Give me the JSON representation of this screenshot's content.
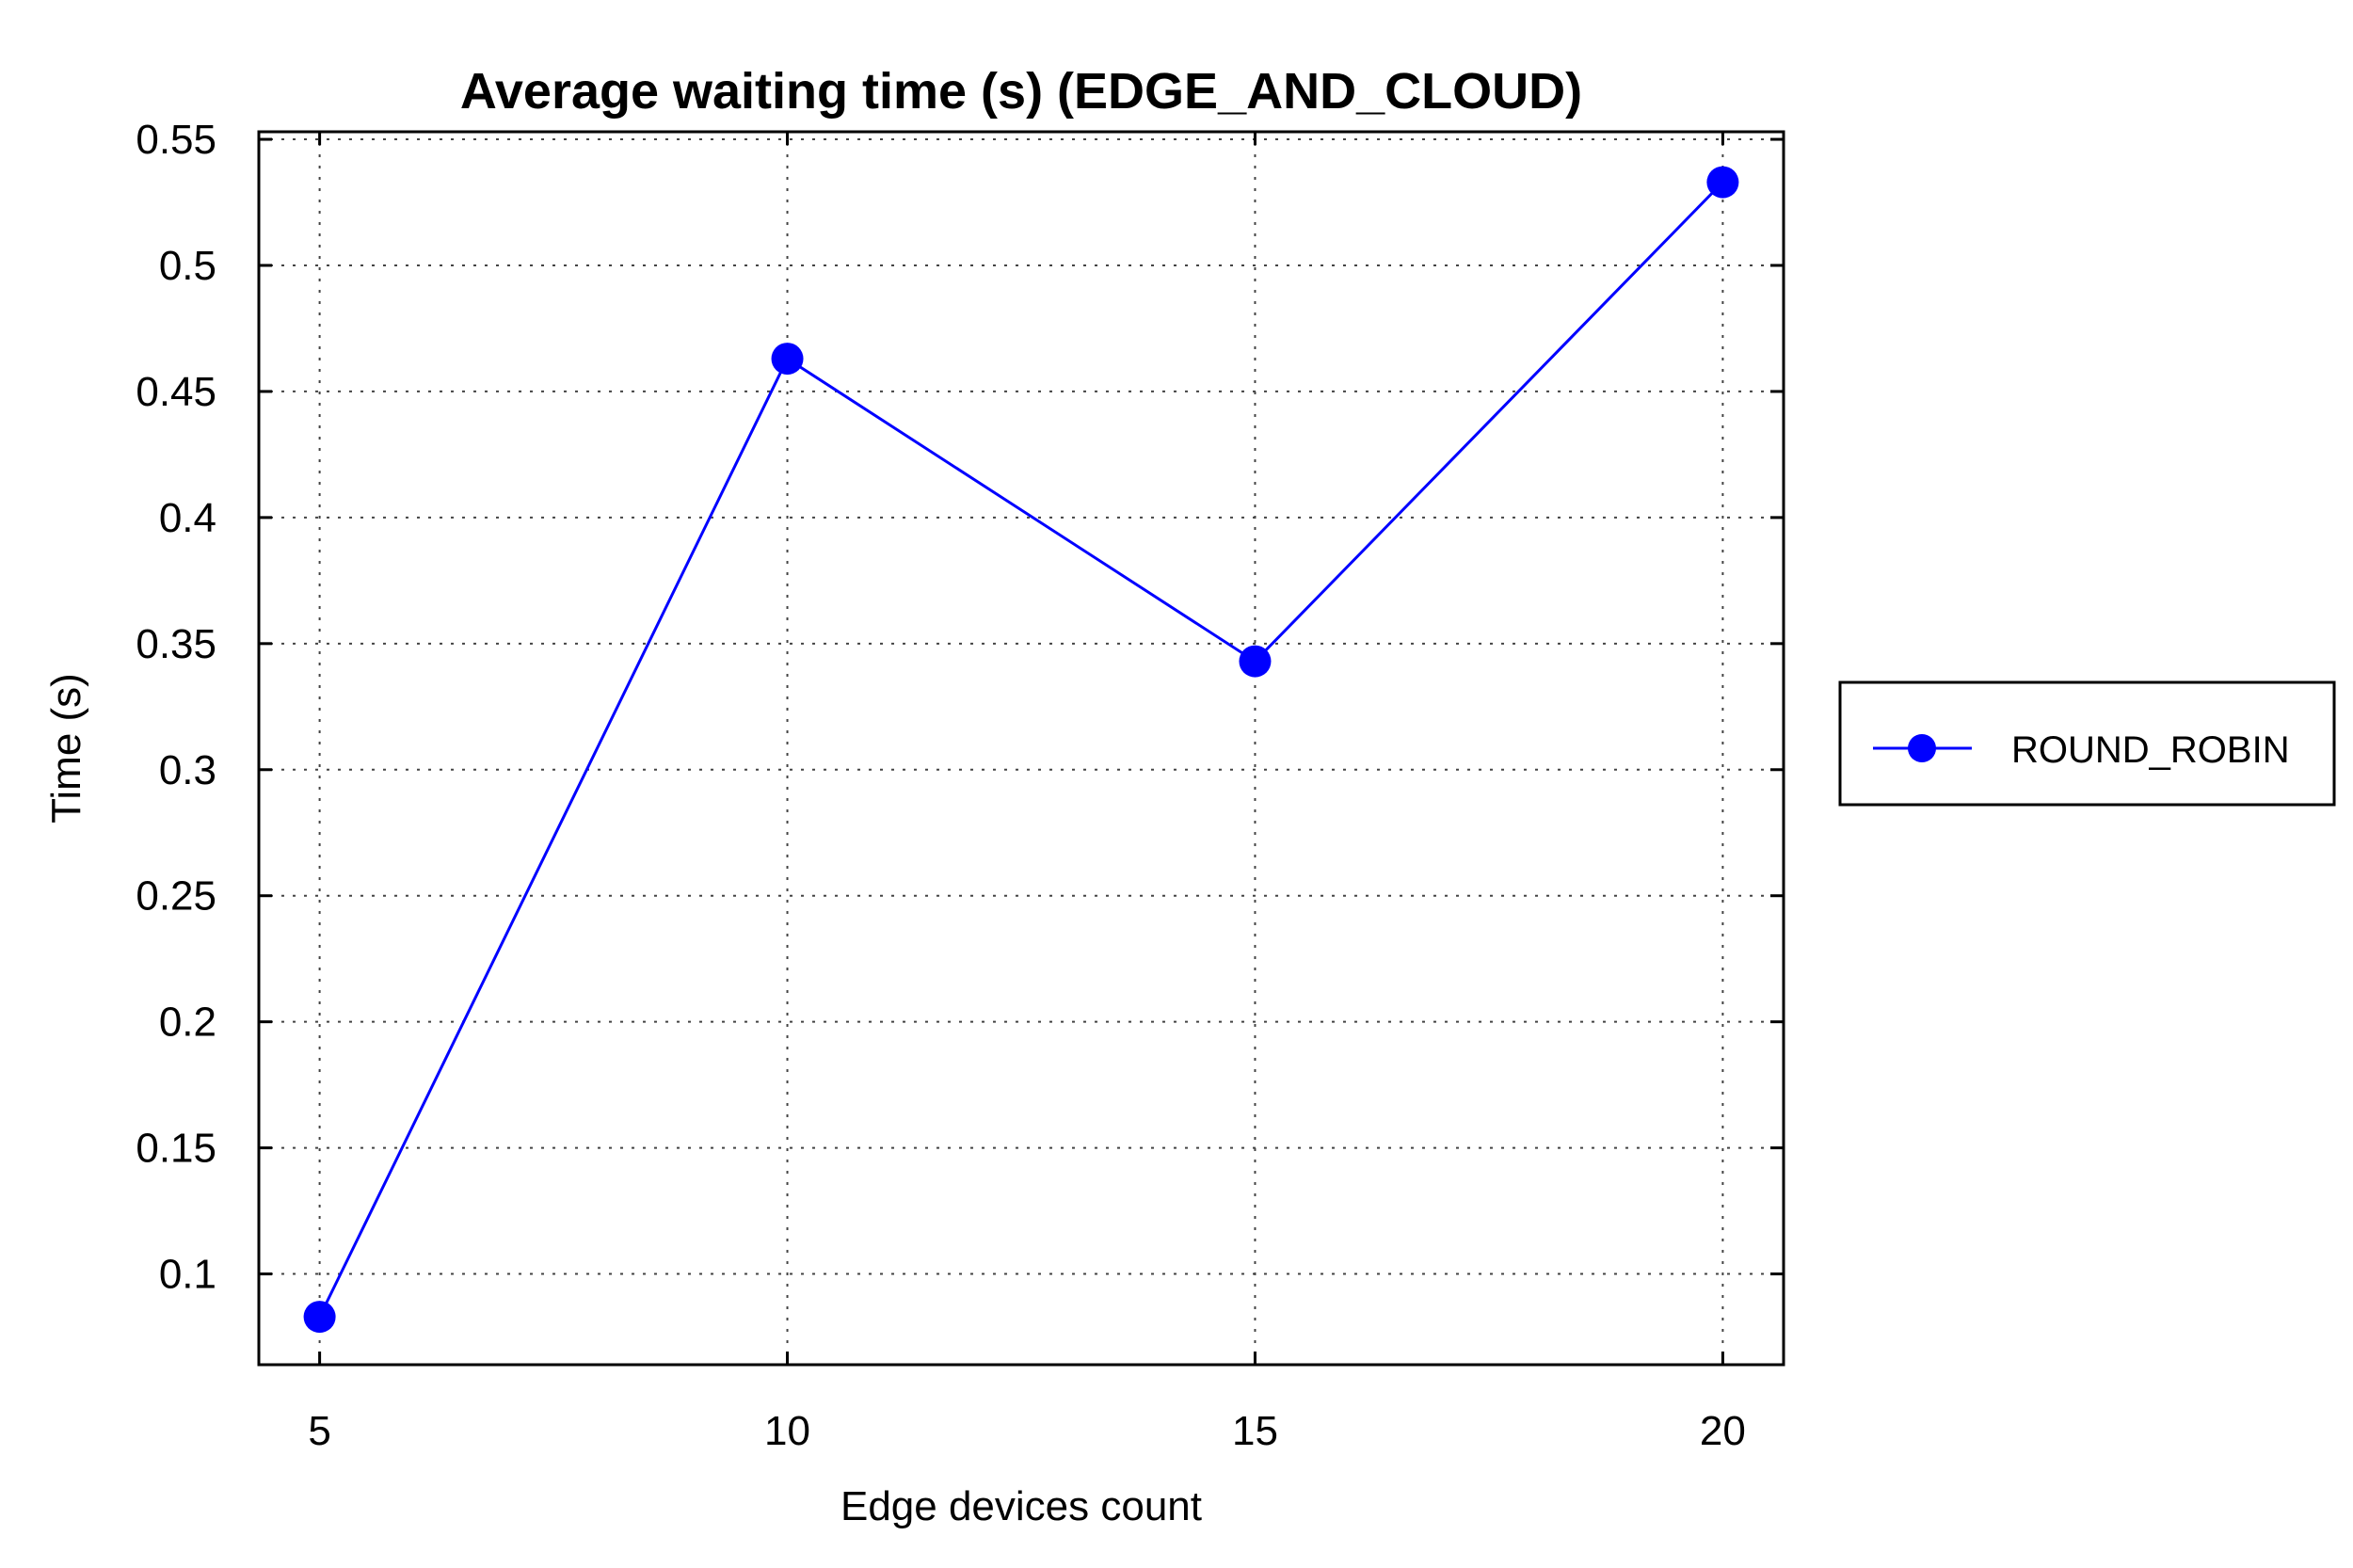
{
  "chart_data": {
    "type": "line",
    "title": "Average waiting time (s) (EDGE_AND_CLOUD)",
    "xlabel": "Edge devices count",
    "ylabel": "Time (s)",
    "x": [
      5,
      10,
      15,
      20
    ],
    "xticks": [
      "5",
      "10",
      "15",
      "20"
    ],
    "yticks": [
      "0.1",
      "0.15",
      "0.2",
      "0.25",
      "0.3",
      "0.35",
      "0.4",
      "0.45",
      "0.5",
      "0.55"
    ],
    "ytick_values": [
      0.1,
      0.15,
      0.2,
      0.25,
      0.3,
      0.35,
      0.4,
      0.45,
      0.5,
      0.55
    ],
    "xlim": [
      4.35,
      20.65
    ],
    "ylim": [
      0.064,
      0.553
    ],
    "grid": true,
    "legend_position": "right",
    "series": [
      {
        "name": "ROUND_ROBIN",
        "color": "#0000ff",
        "marker": "circle",
        "values": [
          0.083,
          0.463,
          0.343,
          0.533
        ]
      }
    ]
  }
}
